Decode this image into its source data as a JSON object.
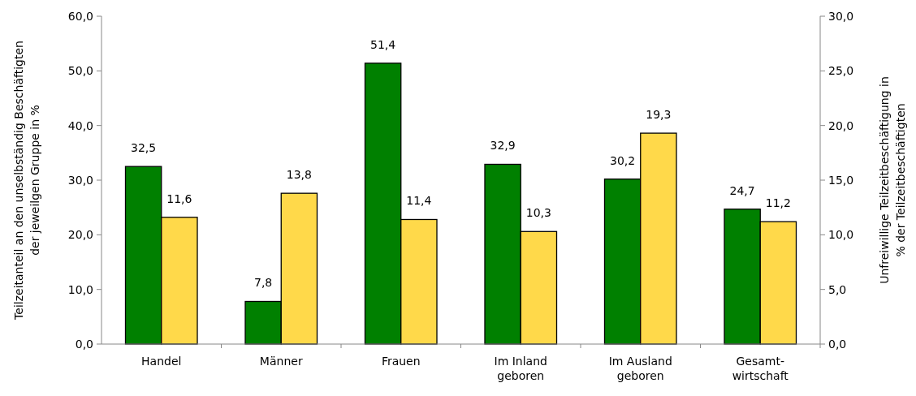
{
  "chart_data": {
    "type": "bar",
    "categories": [
      "Handel",
      "Männer",
      "Frauen",
      "Im Inland geboren",
      "Im Ausland geboren",
      "Gesamt-wirtschaft"
    ],
    "ylabel": "Teilzeitanteil an den unselbständig Beschäftigten der jeweilgen Gruppe in %",
    "y2label": "Unfreiwillige Teilzeitbeschäftigung in % der Teilzeitbeschäftigten",
    "ylim": [
      0,
      60
    ],
    "yticks": [
      {
        "value": 0,
        "label": "0,0"
      },
      {
        "value": 10,
        "label": "10,0"
      },
      {
        "value": 20,
        "label": "20,0"
      },
      {
        "value": 30,
        "label": "30,0"
      },
      {
        "value": 40,
        "label": "40,0"
      },
      {
        "value": 50,
        "label": "50,0"
      },
      {
        "value": 60,
        "label": "60,0"
      }
    ],
    "y2lim": [
      0,
      30
    ],
    "y2ticks": [
      {
        "value": 0,
        "label": "0,0"
      },
      {
        "value": 5,
        "label": "5,0"
      },
      {
        "value": 10,
        "label": "10,0"
      },
      {
        "value": 15,
        "label": "15,0"
      },
      {
        "value": 20,
        "label": "20,0"
      },
      {
        "value": 25,
        "label": "25,0"
      },
      {
        "value": 30,
        "label": "30,0"
      }
    ],
    "series": [
      {
        "color": "#008000",
        "values": [
          32.5,
          7.8,
          51.4,
          32.9,
          30.2,
          24.7
        ],
        "value_labels": [
          "32,5",
          "7,8",
          "51,4",
          "32,9",
          "30,2",
          "24,7"
        ]
      },
      {
        "color": "#ffd94a",
        "axis": "y2",
        "values": [
          11.6,
          13.8,
          11.4,
          10.3,
          19.3,
          11.2
        ],
        "value_labels": [
          "11,6",
          "13,8",
          "11,4",
          "10,3",
          "19,3",
          "11,2"
        ]
      }
    ],
    "grid": false
  }
}
